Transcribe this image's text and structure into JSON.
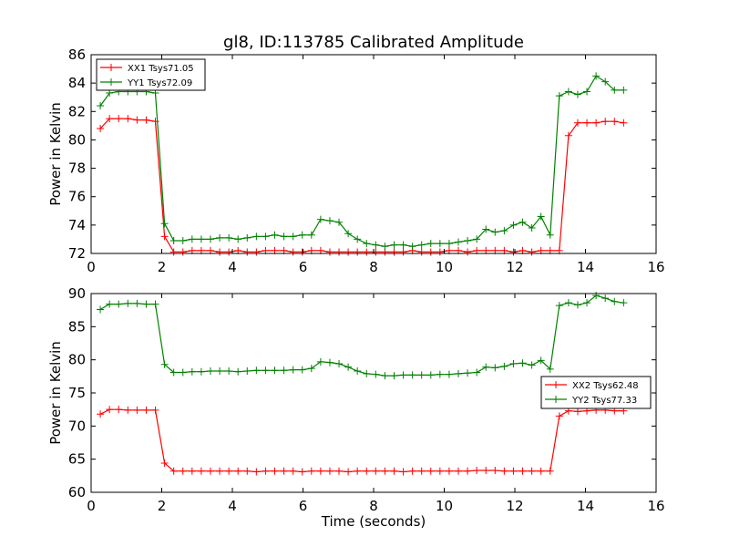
{
  "title": "gl8, ID:113785 Calibrated Amplitude",
  "chart_data": [
    {
      "type": "line",
      "title": "gl8, ID:113785 Calibrated Amplitude",
      "xlabel": "",
      "ylabel": "Power in Kelvin",
      "xlim": [
        0,
        16
      ],
      "ylim": [
        72,
        86
      ],
      "xticks": [
        "0",
        "2",
        "4",
        "6",
        "8",
        "10",
        "12",
        "14",
        "16"
      ],
      "yticks": [
        "72",
        "74",
        "76",
        "78",
        "80",
        "82",
        "84",
        "86"
      ],
      "legend_position": "top-left",
      "grid": false,
      "x": [
        0.26,
        0.52,
        0.78,
        1.04,
        1.3,
        1.56,
        1.82,
        2.08,
        2.34,
        2.6,
        2.86,
        3.12,
        3.38,
        3.64,
        3.9,
        4.16,
        4.42,
        4.68,
        4.94,
        5.2,
        5.46,
        5.72,
        5.98,
        6.24,
        6.5,
        6.76,
        7.02,
        7.28,
        7.54,
        7.8,
        8.06,
        8.32,
        8.58,
        8.84,
        9.1,
        9.36,
        9.62,
        9.88,
        10.14,
        10.4,
        10.66,
        10.92,
        11.18,
        11.44,
        11.7,
        11.96,
        12.22,
        12.48,
        12.74,
        13.0,
        13.26,
        13.52,
        13.78,
        14.04,
        14.3,
        14.56,
        14.82,
        15.08
      ],
      "series": [
        {
          "name": "XX1 Tsys71.05",
          "color": "#ff0000",
          "values": [
            80.8,
            81.5,
            81.5,
            81.5,
            81.4,
            81.4,
            81.3,
            73.2,
            72.1,
            72.1,
            72.2,
            72.2,
            72.2,
            72.1,
            72.1,
            72.2,
            72.1,
            72.1,
            72.2,
            72.2,
            72.2,
            72.1,
            72.1,
            72.2,
            72.2,
            72.1,
            72.1,
            72.1,
            72.1,
            72.1,
            72.1,
            72.1,
            72.1,
            72.1,
            72.2,
            72.1,
            72.1,
            72.1,
            72.2,
            72.2,
            72.1,
            72.2,
            72.2,
            72.2,
            72.2,
            72.1,
            72.2,
            72.1,
            72.2,
            72.2,
            72.2,
            80.3,
            81.2,
            81.2,
            81.2,
            81.3,
            81.3,
            81.2
          ]
        },
        {
          "name": "YY1 Tsys72.09",
          "color": "#008000",
          "values": [
            82.4,
            83.3,
            83.4,
            83.4,
            83.4,
            83.4,
            83.3,
            74.1,
            72.9,
            72.9,
            73.0,
            73.0,
            73.0,
            73.1,
            73.1,
            73.0,
            73.1,
            73.2,
            73.2,
            73.3,
            73.2,
            73.2,
            73.3,
            73.3,
            74.4,
            74.3,
            74.2,
            73.4,
            73.0,
            72.7,
            72.6,
            72.5,
            72.6,
            72.6,
            72.5,
            72.6,
            72.7,
            72.7,
            72.7,
            72.8,
            72.9,
            73.0,
            73.7,
            73.5,
            73.6,
            74.0,
            74.2,
            73.8,
            74.6,
            73.3,
            83.1,
            83.4,
            83.2,
            83.4,
            84.5,
            84.1,
            83.5,
            83.5
          ]
        }
      ]
    },
    {
      "type": "line",
      "title": "",
      "xlabel": "Time (seconds)",
      "ylabel": "Power in Kelvin",
      "xlim": [
        0,
        16
      ],
      "ylim": [
        60,
        90
      ],
      "xticks": [
        "0",
        "2",
        "4",
        "6",
        "8",
        "10",
        "12",
        "14",
        "16"
      ],
      "yticks": [
        "60",
        "65",
        "70",
        "75",
        "80",
        "85",
        "90"
      ],
      "legend_position": "center-right",
      "grid": false,
      "x": [
        0.26,
        0.52,
        0.78,
        1.04,
        1.3,
        1.56,
        1.82,
        2.08,
        2.34,
        2.6,
        2.86,
        3.12,
        3.38,
        3.64,
        3.9,
        4.16,
        4.42,
        4.68,
        4.94,
        5.2,
        5.46,
        5.72,
        5.98,
        6.24,
        6.5,
        6.76,
        7.02,
        7.28,
        7.54,
        7.8,
        8.06,
        8.32,
        8.58,
        8.84,
        9.1,
        9.36,
        9.62,
        9.88,
        10.14,
        10.4,
        10.66,
        10.92,
        11.18,
        11.44,
        11.7,
        11.96,
        12.22,
        12.48,
        12.74,
        13.0,
        13.26,
        13.52,
        13.78,
        14.04,
        14.3,
        14.56,
        14.82,
        15.08
      ],
      "series": [
        {
          "name": "XX2 Tsys62.48",
          "color": "#ff0000",
          "values": [
            71.8,
            72.5,
            72.5,
            72.4,
            72.4,
            72.4,
            72.4,
            64.4,
            63.2,
            63.2,
            63.2,
            63.2,
            63.2,
            63.2,
            63.2,
            63.2,
            63.2,
            63.1,
            63.2,
            63.2,
            63.2,
            63.2,
            63.1,
            63.2,
            63.2,
            63.2,
            63.2,
            63.1,
            63.2,
            63.2,
            63.2,
            63.2,
            63.2,
            63.1,
            63.2,
            63.2,
            63.2,
            63.2,
            63.2,
            63.2,
            63.2,
            63.3,
            63.3,
            63.3,
            63.2,
            63.2,
            63.2,
            63.2,
            63.2,
            63.2,
            71.5,
            72.3,
            72.2,
            72.3,
            72.4,
            72.4,
            72.3,
            72.3
          ]
        },
        {
          "name": "YY2 Tsys77.33",
          "color": "#008000",
          "values": [
            87.6,
            88.4,
            88.4,
            88.5,
            88.5,
            88.4,
            88.4,
            79.3,
            78.1,
            78.1,
            78.2,
            78.2,
            78.3,
            78.3,
            78.3,
            78.2,
            78.3,
            78.4,
            78.4,
            78.4,
            78.4,
            78.5,
            78.5,
            78.7,
            79.7,
            79.6,
            79.4,
            78.9,
            78.3,
            77.9,
            77.8,
            77.6,
            77.6,
            77.7,
            77.7,
            77.7,
            77.7,
            77.8,
            77.8,
            77.9,
            78.0,
            78.1,
            78.9,
            78.8,
            79.0,
            79.4,
            79.5,
            79.2,
            79.9,
            78.6,
            88.2,
            88.6,
            88.3,
            88.6,
            89.7,
            89.3,
            88.8,
            88.6
          ]
        }
      ]
    }
  ]
}
